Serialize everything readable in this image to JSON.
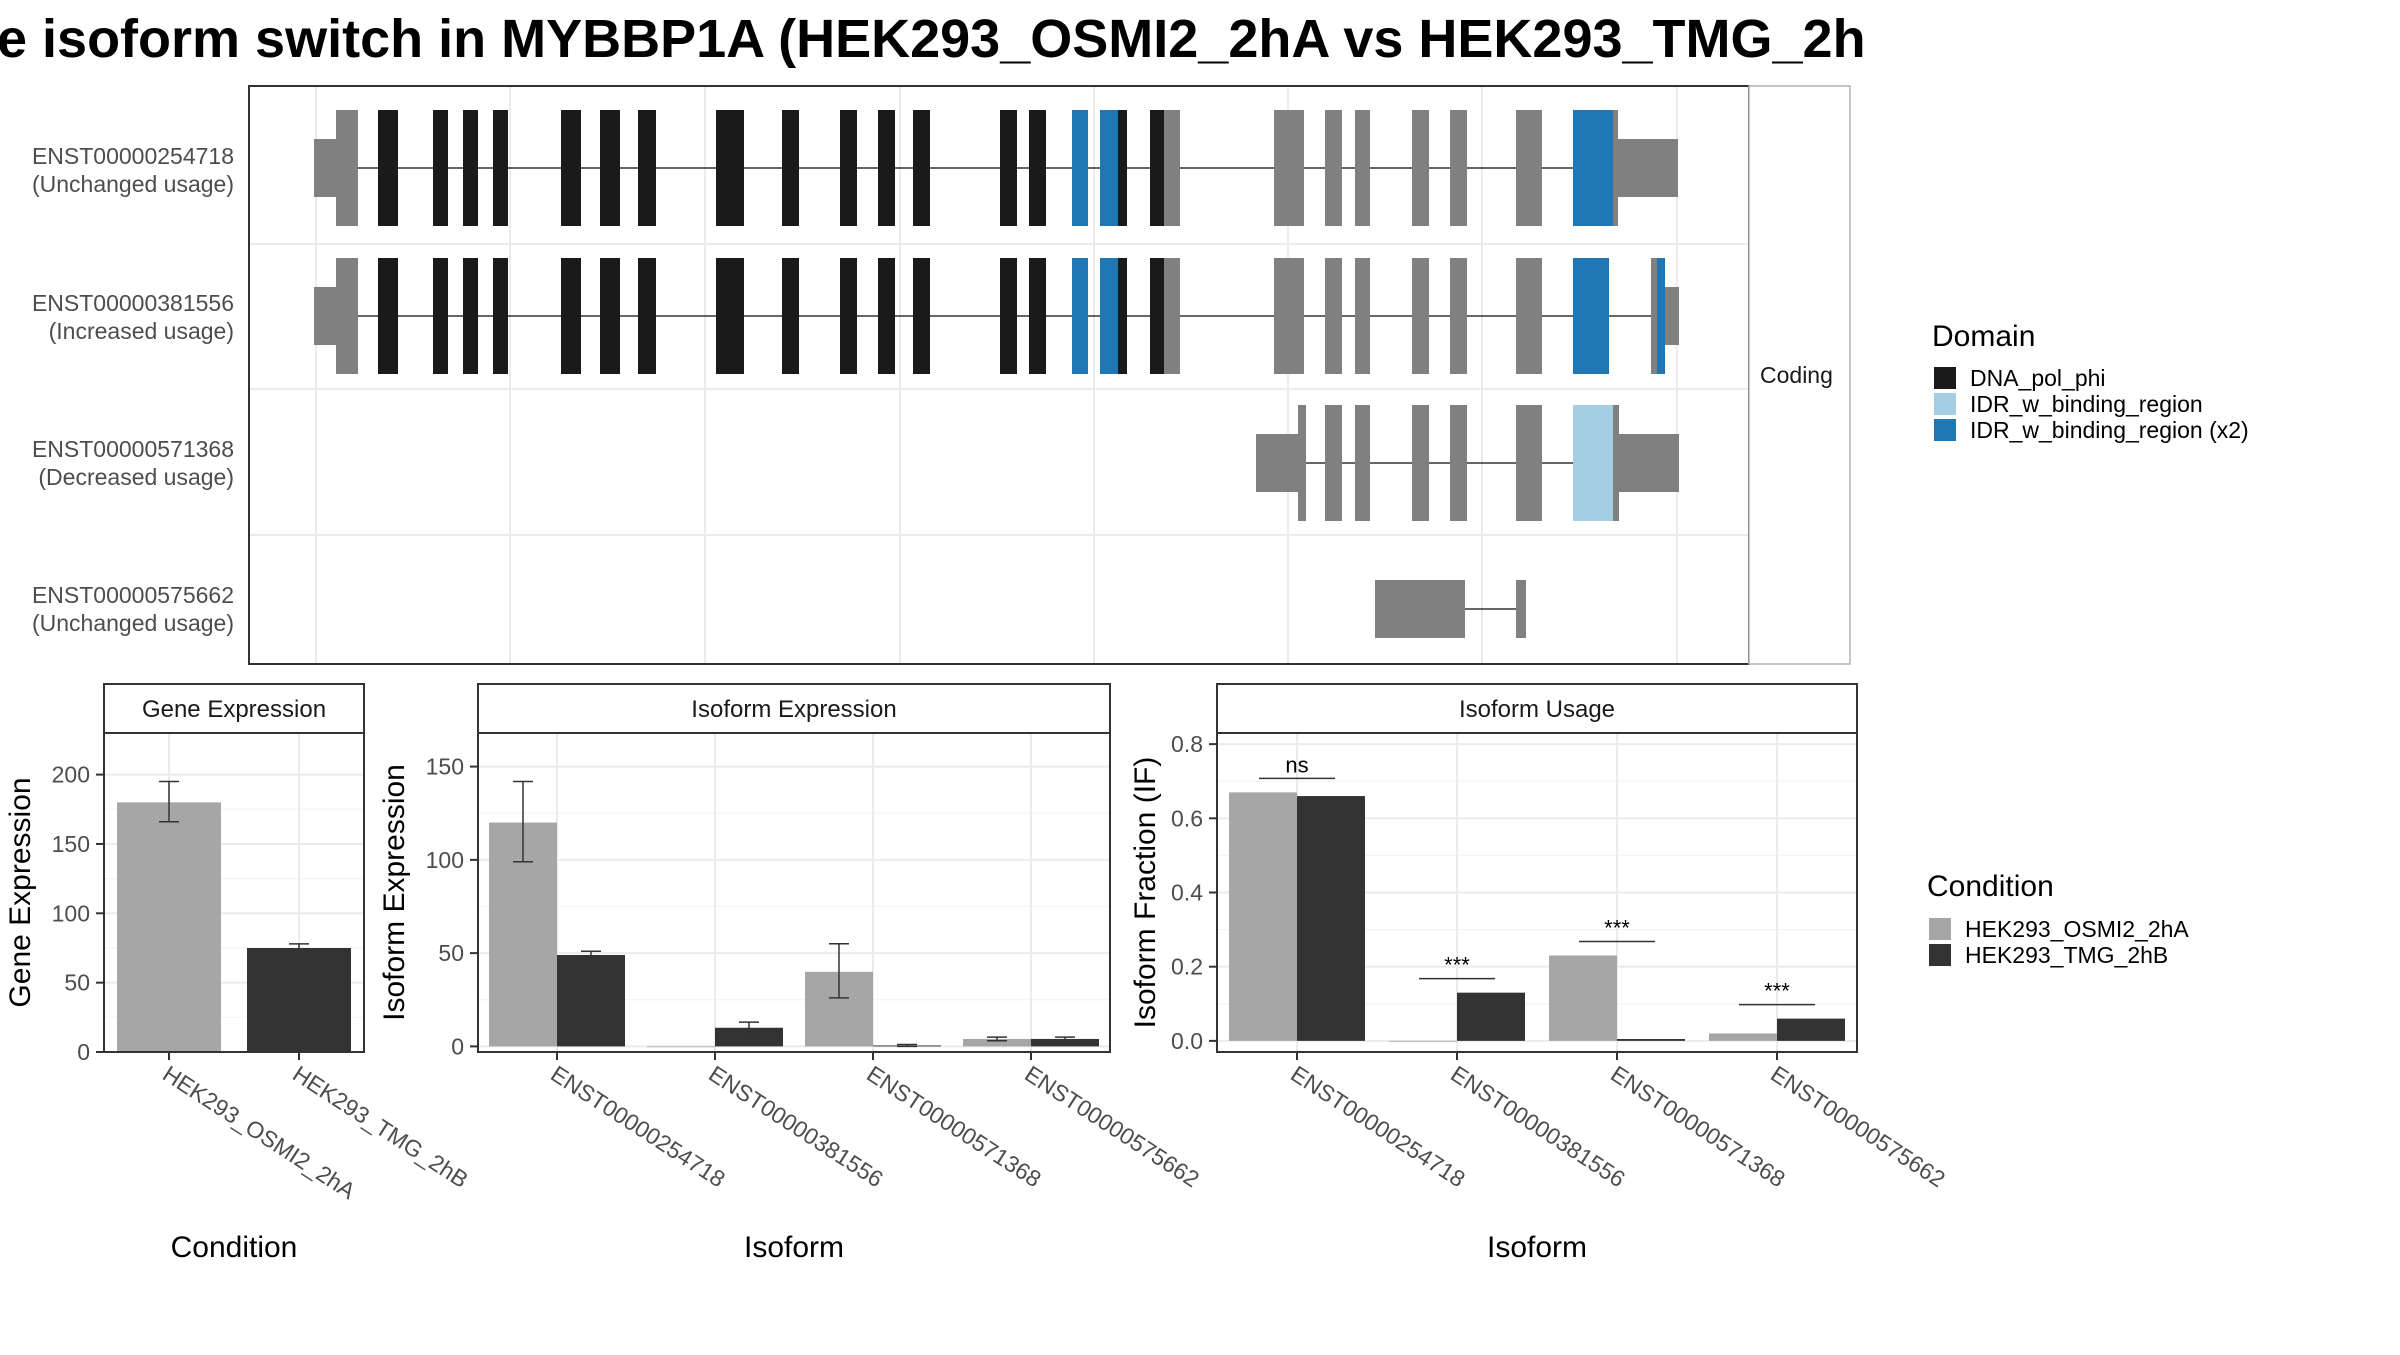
{
  "title": "e isoform switch in MYBBP1A (HEK293_OSMI2_2hA vs HEK293_TMG_2h",
  "structure": {
    "strip_label": "Coding",
    "isoforms": [
      {
        "id": "ENST00000254718",
        "usage": "(Unchanged usage)"
      },
      {
        "id": "ENST00000381556",
        "usage": "(Increased usage)"
      },
      {
        "id": "ENST00000571368",
        "usage": "(Decreased usage)"
      },
      {
        "id": "ENST00000575662",
        "usage": "(Unchanged usage)"
      }
    ],
    "domain_legend": {
      "title": "Domain",
      "items": [
        {
          "label": "DNA_pol_phi",
          "color": "#1a1a1a"
        },
        {
          "label": "IDR_w_binding_region",
          "color": "#a6cee3"
        },
        {
          "label": "IDR_w_binding_region (x2)",
          "color": "#1f78b4"
        }
      ]
    }
  },
  "condition_legend": {
    "title": "Condition",
    "items": [
      {
        "label": "HEK293_OSMI2_2hA",
        "color": "#a6a6a6"
      },
      {
        "label": "HEK293_TMG_2hB",
        "color": "#333333"
      }
    ]
  },
  "chart_data": [
    {
      "type": "bar",
      "title": "Gene Expression",
      "xlabel": "Condition",
      "ylabel": "Gene Expression",
      "categories": [
        "HEK293_OSMI2_2hA",
        "HEK293_TMG_2hB"
      ],
      "values": [
        180,
        75
      ],
      "error_low": [
        166,
        73
      ],
      "error_high": [
        195,
        78
      ],
      "ylim": [
        0,
        230
      ],
      "yticks": [
        0,
        50,
        100,
        150,
        200
      ]
    },
    {
      "type": "bar",
      "title": "Isoform Expression",
      "xlabel": "Isoform",
      "ylabel": "Isoform Expression",
      "categories": [
        "ENST00000254718",
        "ENST00000381556",
        "ENST00000571368",
        "ENST00000575662"
      ],
      "series": [
        {
          "condition": "HEK293_OSMI2_2hA",
          "values": [
            120,
            0,
            40,
            4
          ],
          "error_low": [
            99,
            0,
            26,
            3
          ],
          "error_high": [
            142,
            0,
            55,
            5
          ]
        },
        {
          "condition": "HEK293_TMG_2hB",
          "values": [
            49,
            10,
            0.5,
            4
          ],
          "error_low": [
            48,
            7,
            0,
            3
          ],
          "error_high": [
            51,
            13,
            1,
            5
          ]
        }
      ],
      "ylim": [
        -3,
        168
      ],
      "yticks": [
        0,
        50,
        100,
        150
      ]
    },
    {
      "type": "bar",
      "title": "Isoform Usage",
      "xlabel": "Isoform",
      "ylabel": "Isoform Fraction (IF)",
      "categories": [
        "ENST00000254718",
        "ENST00000381556",
        "ENST00000571368",
        "ENST00000575662"
      ],
      "series": [
        {
          "condition": "HEK293_OSMI2_2hA",
          "values": [
            0.67,
            0.0,
            0.23,
            0.02
          ]
        },
        {
          "condition": "HEK293_TMG_2hB",
          "values": [
            0.66,
            0.13,
            0.005,
            0.06
          ]
        }
      ],
      "significance": [
        "ns",
        "***",
        "***",
        "***"
      ],
      "ylim": [
        -0.03,
        0.83
      ],
      "yticks": [
        0.0,
        0.2,
        0.4,
        0.6,
        0.8
      ],
      "ytick_labels": [
        "0.0",
        "0.2",
        "0.4",
        "0.6",
        "0.8"
      ]
    }
  ]
}
